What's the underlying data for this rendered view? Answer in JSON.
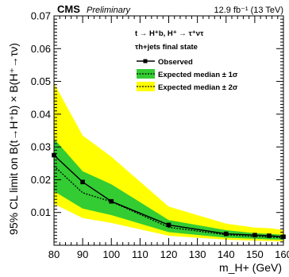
{
  "header": {
    "experiment": "CMS",
    "status": "Preliminary",
    "lumi": "12.9 fb⁻¹ (13 TeV)"
  },
  "annotations": {
    "process_line": "t → H⁺b, H⁺ → τ⁺ντ",
    "state_line": "τh+jets final state"
  },
  "legend": {
    "observed": "Observed",
    "expected_1s": "Expected median ± 1σ",
    "expected_2s": "Expected median ± 2σ"
  },
  "axes": {
    "ylabel": "95% CL limit on B(t→H⁺b) × B(H⁺→τν)",
    "xlabel": "m_H+ (GeV)"
  },
  "colors": {
    "band_1s": "#33cc33",
    "band_2s": "#ffff00",
    "observed": "#000000",
    "expected": "#000000"
  },
  "chart_data": {
    "type": "line",
    "x": [
      80,
      90,
      100,
      120,
      140,
      150,
      155,
      160
    ],
    "xticks": [
      "80",
      "90",
      "100",
      "110",
      "120",
      "130",
      "140",
      "150",
      "160"
    ],
    "yticks": [
      "0.01",
      "0.02",
      "0.03",
      "0.04",
      "0.05",
      "0.06",
      "0.07"
    ],
    "xlim": [
      80,
      160
    ],
    "ylim": [
      0.0,
      0.07
    ],
    "series": [
      {
        "name": "Observed",
        "values": [
          0.0275,
          0.0193,
          0.0134,
          0.0062,
          0.0035,
          0.0031,
          0.0029,
          0.0026
        ]
      },
      {
        "name": "Expected median",
        "values": [
          0.0242,
          0.016,
          0.0133,
          0.0055,
          0.0032,
          0.0027,
          0.0025,
          0.0023
        ]
      }
    ],
    "band_1s": {
      "lower": [
        0.0165,
        0.0112,
        0.0092,
        0.004,
        0.0023,
        0.002,
        0.0018,
        0.0017
      ],
      "upper": [
        0.0325,
        0.0226,
        0.0186,
        0.0077,
        0.0046,
        0.0037,
        0.0035,
        0.0032
      ]
    },
    "band_2s": {
      "lower": [
        0.0126,
        0.0083,
        0.0068,
        0.0029,
        0.0017,
        0.0014,
        0.0013,
        0.0012
      ],
      "upper": [
        0.0495,
        0.0335,
        0.027,
        0.0118,
        0.0066,
        0.0054,
        0.0052,
        0.0047
      ]
    },
    "grid": false,
    "legend_position": "top-right"
  }
}
